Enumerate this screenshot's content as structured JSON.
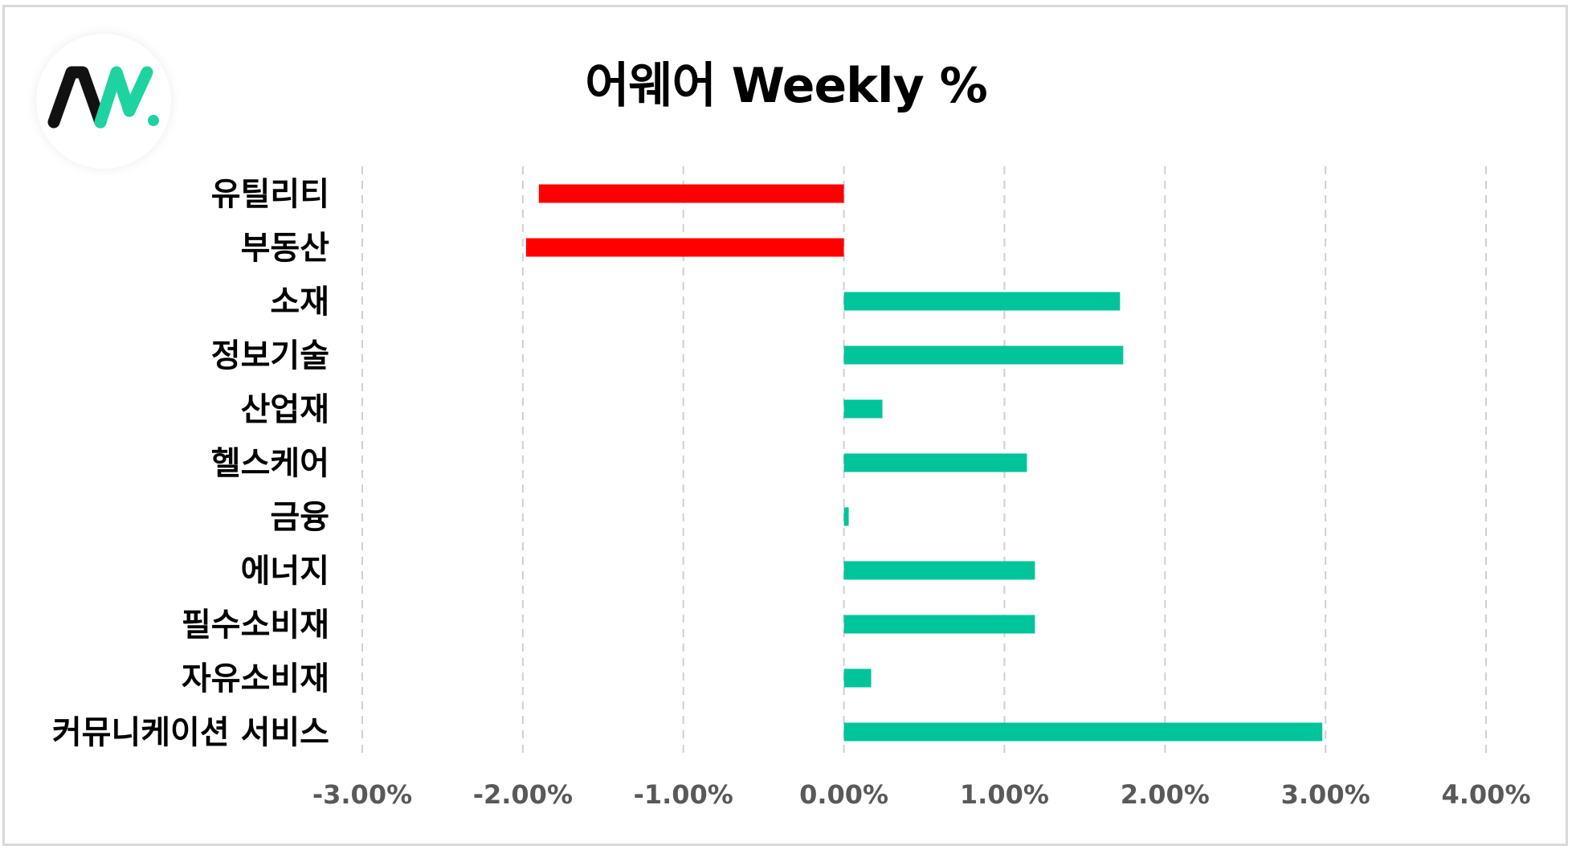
{
  "chart_data": {
    "type": "bar",
    "orientation": "horizontal",
    "title": "어웨어 Weekly %",
    "categories": [
      "유틸리티",
      "부동산",
      "소재",
      "정보기술",
      "산업재",
      "헬스케어",
      "금융",
      "에너지",
      "필수소비재",
      "자유소비재",
      "커뮤니케이션 서비스"
    ],
    "values": [
      -1.9,
      -1.98,
      1.72,
      1.74,
      0.24,
      1.14,
      0.03,
      1.19,
      1.19,
      0.17,
      2.98
    ],
    "xlim": [
      -3,
      4
    ],
    "xticks": [
      -3,
      -2,
      -1,
      0,
      1,
      2,
      3,
      4
    ],
    "xtick_labels": [
      "-3.00%",
      "-2.00%",
      "-1.00%",
      "0.00%",
      "1.00%",
      "2.00%",
      "3.00%",
      "4.00%"
    ],
    "grid": "vertical-dashed",
    "xlabel": "",
    "ylabel": "",
    "colors": {
      "positive": "#00c49a",
      "negative": "#ff0000",
      "grid": "#d0d0d0",
      "tick_text": "#595959"
    }
  },
  "logo": {
    "text": "AW.",
    "icon": "aw-logo-icon",
    "colors": {
      "dark": "#111111",
      "accent": "#1ed3a0"
    }
  }
}
